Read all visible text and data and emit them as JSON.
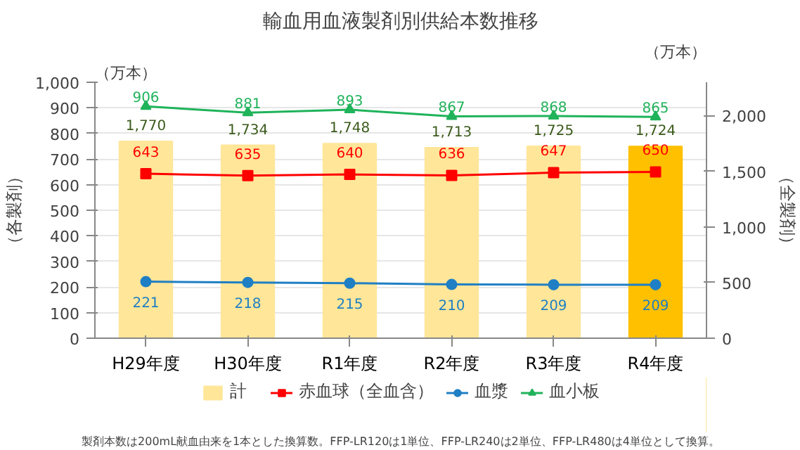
{
  "chart_data": {
    "type": "bar",
    "title": "輸血用血液製剤別供給本数推移",
    "ylabel": "（各製剤）",
    "y2label": "（全製剤）",
    "annotations": [
      "（万本）",
      "（万本）",
      "製剤本数は200mL献血由来を1本とした換算数。FFP-LR120は1単位、FFP-LR240は2単位、FFP-LR480は4単位として換算。"
    ],
    "categories": [
      "H29年度",
      "H30年度",
      "R1年度",
      "R2年度",
      "R3年度",
      "R4年度"
    ],
    "series": [
      {
        "name": "計",
        "axis": "y2",
        "colors": [
          "#ffe699",
          "#ffe699",
          "#ffe699",
          "#ffe699",
          "#ffe699",
          "#ffc000"
        ],
        "values": [
          1770,
          1734,
          1748,
          1713,
          1725,
          1724
        ],
        "value_labels": [
          "1,770",
          "1,734",
          "1,748",
          "1,713",
          "1,725",
          "1,724"
        ]
      },
      {
        "name": "赤血球（全血含）",
        "type": "line",
        "color": "#ff0000",
        "marker": "square",
        "values": [
          643,
          635,
          640,
          636,
          647,
          650
        ],
        "value_labels": [
          "643",
          "635",
          "640",
          "636",
          "647",
          "650"
        ]
      },
      {
        "name": "血漿",
        "type": "line",
        "color": "#1f7fc4",
        "marker": "circle",
        "values": [
          221,
          218,
          215,
          210,
          209,
          209
        ],
        "value_labels": [
          "221",
          "218",
          "215",
          "210",
          "209",
          "209"
        ]
      },
      {
        "name": "血小板",
        "type": "line",
        "color": "#1fb35a",
        "marker": "triangle",
        "values": [
          906,
          881,
          893,
          867,
          868,
          865
        ],
        "value_labels": [
          "906",
          "881",
          "893",
          "867",
          "868",
          "865"
        ]
      }
    ],
    "ylim": [
      0,
      1000
    ],
    "yticks": [
      0,
      100,
      200,
      300,
      400,
      500,
      600,
      700,
      800,
      900,
      {
        "value": 1000,
        "label": "1,000"
      }
    ],
    "y2lim": [
      0,
      2300
    ],
    "y2ticks": [
      0,
      500,
      {
        "value": 1000,
        "label": "1,000"
      },
      {
        "value": 1500,
        "label": "1,500"
      },
      {
        "value": 2000,
        "label": "2,000"
      }
    ],
    "grid": "y",
    "legend": "bottom"
  }
}
